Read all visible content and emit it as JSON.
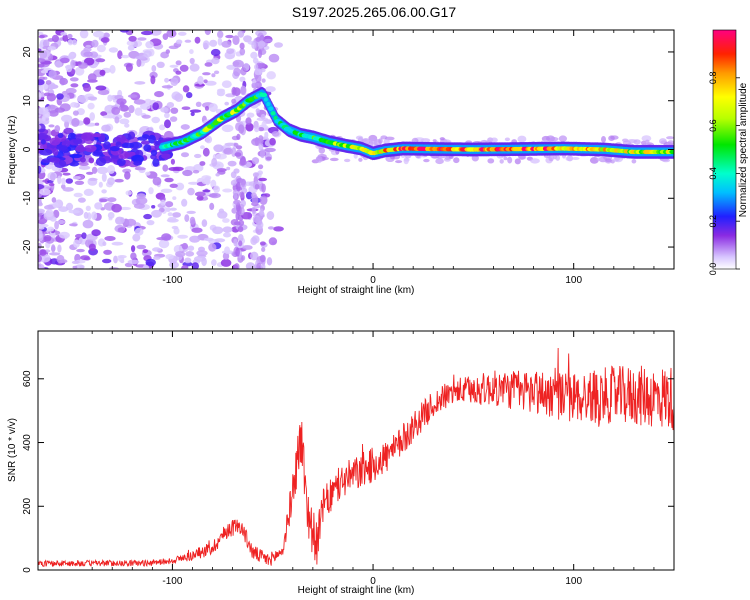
{
  "title": "S197.2025.265.06.00.G17",
  "colors": {
    "snr_line": "#ee2222",
    "frame": "#000000",
    "background": "#ffffff"
  },
  "chart_data": [
    {
      "type": "heatmap",
      "name": "spectrogram",
      "xlabel": "Height of straight line (km)",
      "ylabel": "Frequency (Hz)",
      "xlim": [
        -167,
        150
      ],
      "ylim": [
        -24.5,
        24.5
      ],
      "xticks": [
        -100,
        0,
        100
      ],
      "xtick_labels": [
        "-100",
        "0",
        "100"
      ],
      "yticks": [
        -20,
        -10,
        0,
        10,
        20
      ],
      "ytick_labels": [
        "-20",
        "-10",
        "0",
        "10",
        "20"
      ],
      "colorbar": {
        "label": "Normalized spectral amplitude",
        "range": [
          0,
          1
        ],
        "ticks": [
          0.0,
          0.2,
          0.4,
          0.6,
          0.8
        ],
        "tick_labels": [
          "0.0",
          "0.2",
          "0.4",
          "0.6",
          "0.8"
        ]
      },
      "main_trace": [
        {
          "x": -105,
          "f": 0.5,
          "a": 0.35
        },
        {
          "x": -95,
          "f": 1.5,
          "a": 0.42
        },
        {
          "x": -85,
          "f": 3.5,
          "a": 0.5
        },
        {
          "x": -80,
          "f": 5.0,
          "a": 0.55
        },
        {
          "x": -75,
          "f": 6.5,
          "a": 0.58
        },
        {
          "x": -68,
          "f": 8.0,
          "a": 0.55
        },
        {
          "x": -62,
          "f": 10.0,
          "a": 0.45
        },
        {
          "x": -55,
          "f": 11.5,
          "a": 0.4
        },
        {
          "x": -48,
          "f": 6.0,
          "a": 0.35
        },
        {
          "x": -42,
          "f": 4.0,
          "a": 0.38
        },
        {
          "x": -36,
          "f": 3.0,
          "a": 0.45
        },
        {
          "x": -30,
          "f": 2.5,
          "a": 0.5
        },
        {
          "x": -22,
          "f": 1.5,
          "a": 0.55
        },
        {
          "x": -14,
          "f": 0.8,
          "a": 0.6
        },
        {
          "x": -6,
          "f": 0.2,
          "a": 0.65
        },
        {
          "x": 0,
          "f": -0.8,
          "a": 0.6
        },
        {
          "x": 6,
          "f": -0.2,
          "a": 0.75
        },
        {
          "x": 15,
          "f": 0.2,
          "a": 0.85
        },
        {
          "x": 30,
          "f": 0.1,
          "a": 0.9
        },
        {
          "x": 50,
          "f": 0.0,
          "a": 0.85
        },
        {
          "x": 75,
          "f": 0.1,
          "a": 0.9
        },
        {
          "x": 95,
          "f": 0.2,
          "a": 0.8
        },
        {
          "x": 115,
          "f": 0.0,
          "a": 0.7
        },
        {
          "x": 130,
          "f": -0.5,
          "a": 0.65
        },
        {
          "x": 150,
          "f": -0.5,
          "a": 0.6
        }
      ]
    },
    {
      "type": "line",
      "name": "snr",
      "xlabel": "Height of straight line (km)",
      "ylabel": "SNR (10 * v/v)",
      "xlim": [
        -167,
        150
      ],
      "ylim": [
        0,
        750
      ],
      "xticks": [
        -100,
        0,
        100
      ],
      "xtick_labels": [
        "-100",
        "0",
        "100"
      ],
      "yticks": [
        0,
        200,
        400,
        600
      ],
      "ytick_labels": [
        "0",
        "200",
        "400",
        "600"
      ],
      "envelope": [
        {
          "x": -167,
          "y": 20
        },
        {
          "x": -110,
          "y": 22
        },
        {
          "x": -100,
          "y": 30
        },
        {
          "x": -90,
          "y": 45
        },
        {
          "x": -80,
          "y": 70
        },
        {
          "x": -72,
          "y": 130
        },
        {
          "x": -66,
          "y": 140
        },
        {
          "x": -60,
          "y": 55
        },
        {
          "x": -52,
          "y": 30
        },
        {
          "x": -45,
          "y": 60
        },
        {
          "x": -40,
          "y": 250
        },
        {
          "x": -36,
          "y": 420
        },
        {
          "x": -32,
          "y": 160
        },
        {
          "x": -28,
          "y": 80
        },
        {
          "x": -25,
          "y": 200
        },
        {
          "x": -15,
          "y": 280
        },
        {
          "x": 0,
          "y": 330
        },
        {
          "x": 10,
          "y": 370
        },
        {
          "x": 20,
          "y": 450
        },
        {
          "x": 30,
          "y": 520
        },
        {
          "x": 40,
          "y": 560
        },
        {
          "x": 60,
          "y": 570
        },
        {
          "x": 80,
          "y": 560
        },
        {
          "x": 100,
          "y": 540
        },
        {
          "x": 120,
          "y": 550
        },
        {
          "x": 150,
          "y": 540
        }
      ],
      "noise_amplitude": [
        {
          "x": -167,
          "y": 12
        },
        {
          "x": -100,
          "y": 12
        },
        {
          "x": -72,
          "y": 35
        },
        {
          "x": -45,
          "y": 25
        },
        {
          "x": -36,
          "y": 120
        },
        {
          "x": -25,
          "y": 70
        },
        {
          "x": 0,
          "y": 70
        },
        {
          "x": 40,
          "y": 50
        },
        {
          "x": 80,
          "y": 90
        },
        {
          "x": 150,
          "y": 130
        }
      ]
    }
  ]
}
